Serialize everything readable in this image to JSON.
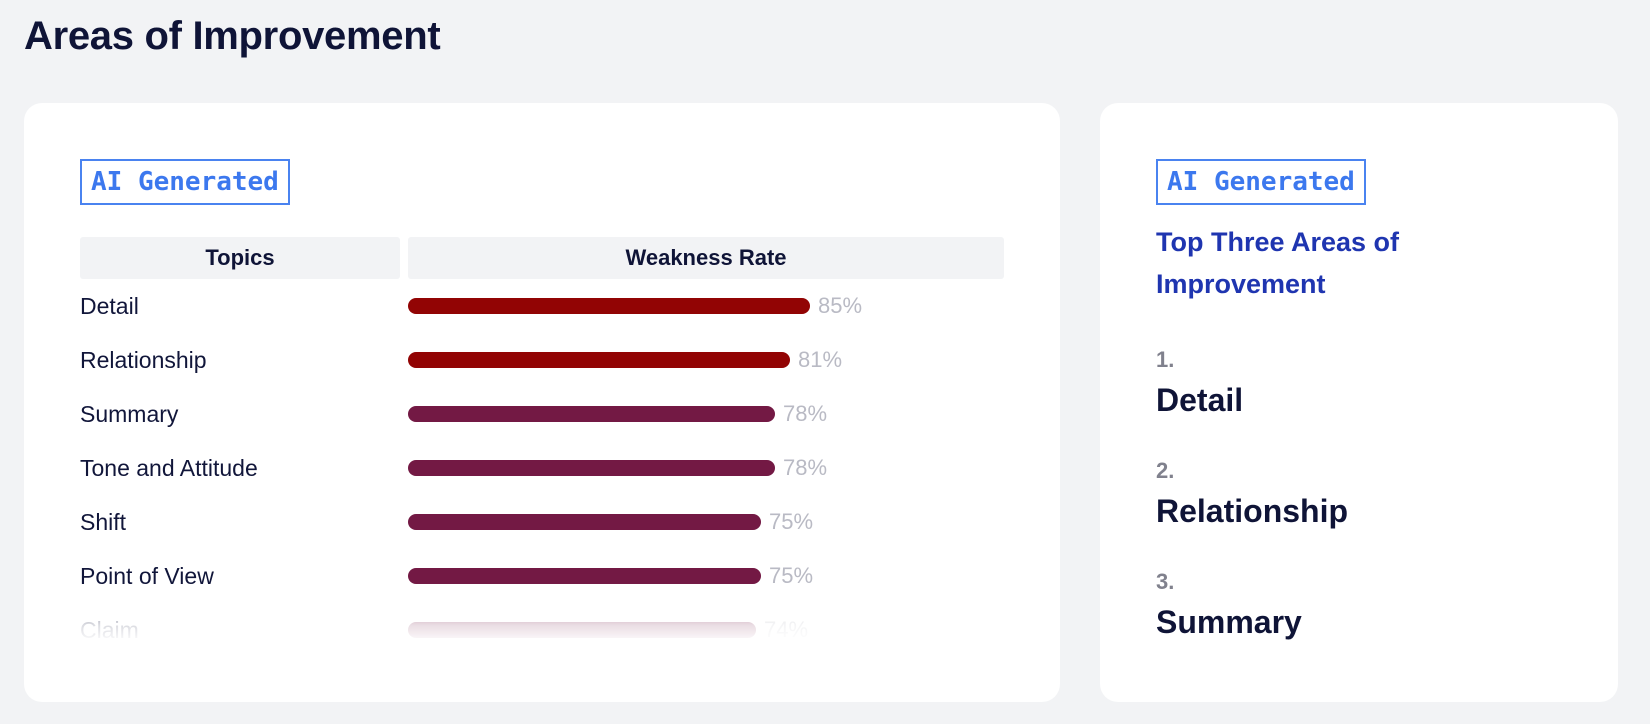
{
  "page": {
    "title": "Areas of Improvement"
  },
  "weakness_panel": {
    "badge": "AI Generated",
    "headers": {
      "topics": "Topics",
      "rate": "Weakness Rate"
    },
    "rows": [
      {
        "topic": "Detail",
        "rate": 85,
        "rate_label": "85%",
        "color": "#920404"
      },
      {
        "topic": "Relationship",
        "rate": 81,
        "rate_label": "81%",
        "color": "#920404"
      },
      {
        "topic": "Summary",
        "rate": 78,
        "rate_label": "78%",
        "color": "#731944"
      },
      {
        "topic": "Tone and Attitude",
        "rate": 78,
        "rate_label": "78%",
        "color": "#731944"
      },
      {
        "topic": "Shift",
        "rate": 75,
        "rate_label": "75%",
        "color": "#731944"
      },
      {
        "topic": "Point of View",
        "rate": 75,
        "rate_label": "75%",
        "color": "#731944"
      },
      {
        "topic": "Claim",
        "rate": 74,
        "rate_label": "74%",
        "color": "#731944"
      }
    ]
  },
  "top_three_panel": {
    "badge": "AI Generated",
    "title": "Top Three Areas of Improvement",
    "items": [
      {
        "number": "1.",
        "label": "Detail"
      },
      {
        "number": "2.",
        "label": "Relationship"
      },
      {
        "number": "3.",
        "label": "Summary"
      }
    ]
  }
}
